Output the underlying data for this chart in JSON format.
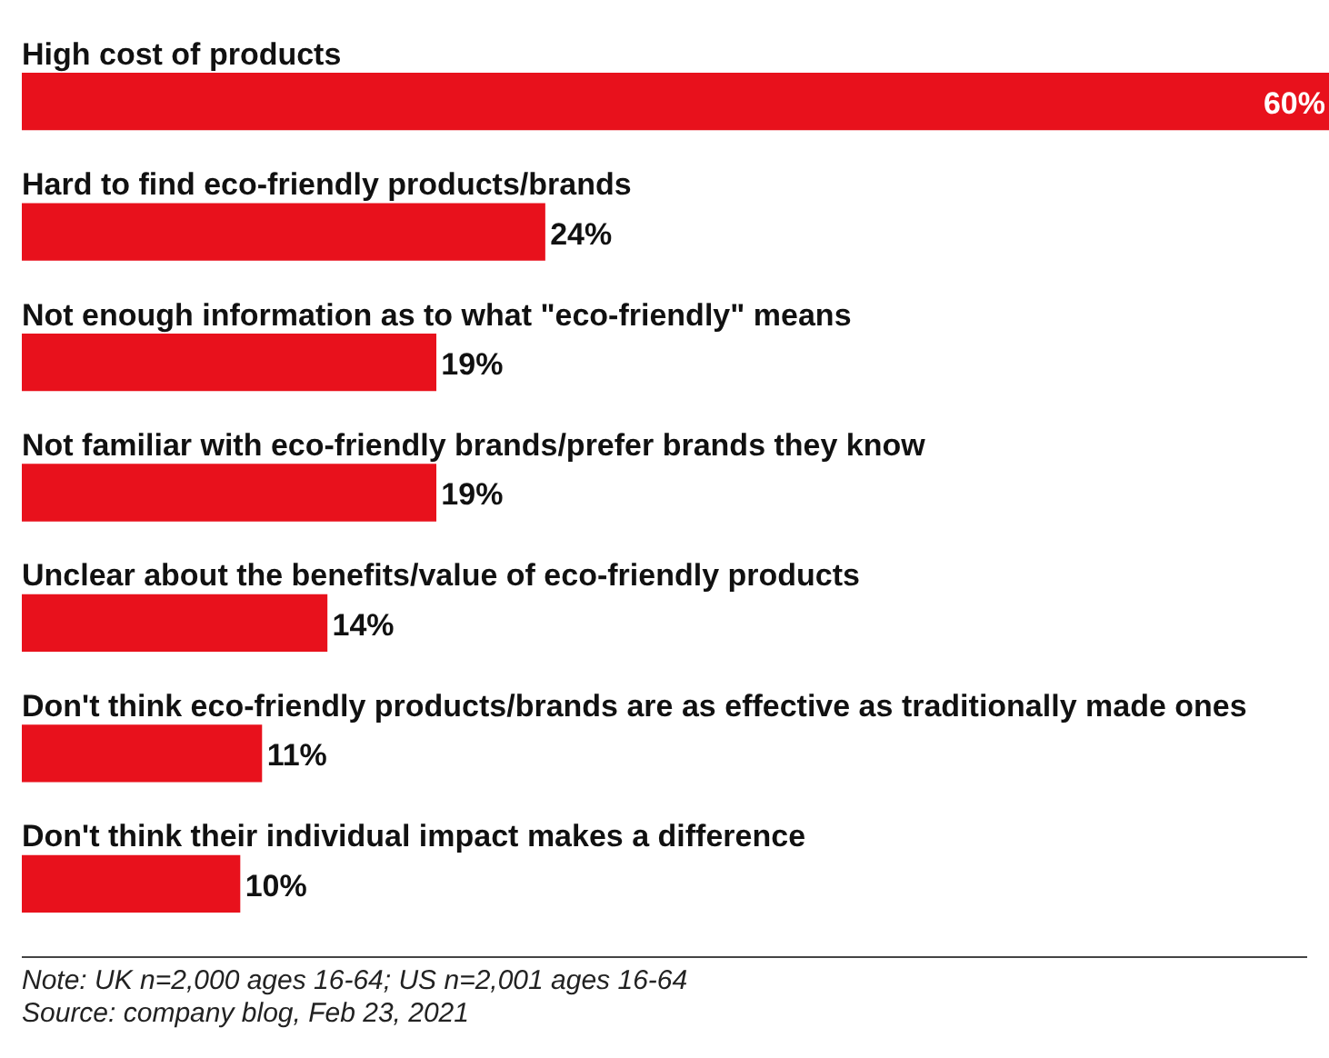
{
  "chart_data": {
    "type": "bar",
    "orientation": "horizontal",
    "categories": [
      "High cost of products",
      "Hard to find eco-friendly products/brands",
      "Not enough information as to what \"eco-friendly\" means",
      "Not familiar with eco-friendly brands/prefer brands they know",
      "Unclear about the benefits/value of eco-friendly products",
      "Don't think eco-friendly products/brands are as effective as traditionally made ones",
      "Don't think their individual impact makes a difference"
    ],
    "values": [
      60,
      24,
      19,
      19,
      14,
      11,
      10
    ],
    "value_labels": [
      "60%",
      "24%",
      "19%",
      "19%",
      "14%",
      "11%",
      "10%"
    ],
    "color": "#e8111c",
    "legend": false,
    "annotations": [
      "Note: UK n=2,000 ages 16-64; US n=2,001 ages 16-64",
      "Source: company blog, Feb 23, 2021"
    ]
  }
}
